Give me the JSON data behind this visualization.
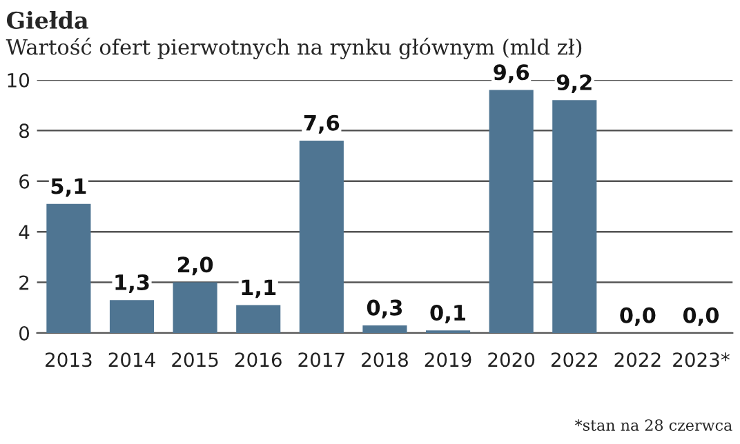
{
  "chart_data": {
    "type": "bar",
    "title": "Giełda",
    "subtitle": "Wartość ofert pierwotnych na rynku głównym (mld zł)",
    "categories": [
      "2013",
      "2014",
      "2015",
      "2016",
      "2017",
      "2018",
      "2019",
      "2020",
      "2022",
      "2022",
      "2023*"
    ],
    "values": [
      5.1,
      1.3,
      2.0,
      1.1,
      7.6,
      0.3,
      0.1,
      9.6,
      9.2,
      0.0,
      0.0
    ],
    "value_labels": [
      "5,1",
      "1,3",
      "2,0",
      "1,1",
      "7,6",
      "0,3",
      "0,1",
      "9,6",
      "9,2",
      "0,0",
      "0,0"
    ],
    "color": "#4f7592",
    "ylim": [
      0,
      10
    ],
    "yticks": [
      0,
      2,
      4,
      6,
      8,
      10
    ],
    "grid": "y",
    "annotations": [
      "*stan na 28 czerwca"
    ]
  }
}
